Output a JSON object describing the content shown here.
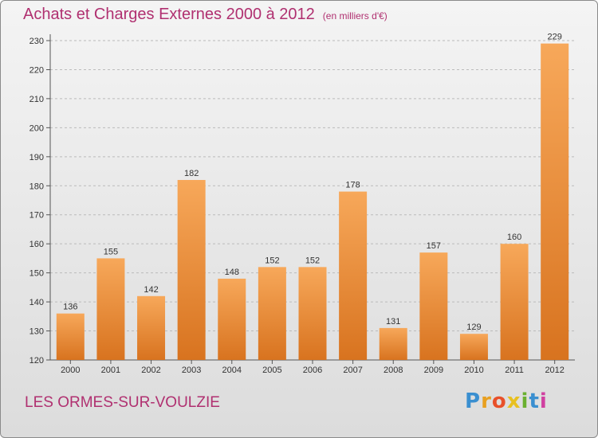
{
  "title": "Achats et Charges Externes 2000 à 2012",
  "subtitle": "(en milliers d'€)",
  "location": "LES ORMES-SUR-VOULZIE",
  "brand": {
    "letters": [
      "P",
      "r",
      "o",
      "x",
      "i",
      "t",
      "i"
    ],
    "colors": [
      "#3a8fd0",
      "#e8a020",
      "#e8502a",
      "#e8c020",
      "#6ab030",
      "#3a8fd0",
      "#d040a0"
    ]
  },
  "colors": {
    "title": "#b03070",
    "bar_light": "#f7a85a",
    "bar_dark": "#d8731f",
    "grid": "#bbbbbb"
  },
  "chart_data": {
    "type": "bar",
    "categories": [
      "2000",
      "2001",
      "2002",
      "2003",
      "2004",
      "2005",
      "2006",
      "2007",
      "2008",
      "2009",
      "2010",
      "2011",
      "2012"
    ],
    "values": [
      136,
      155,
      142,
      182,
      148,
      152,
      152,
      178,
      131,
      157,
      129,
      160,
      229
    ],
    "ylim": [
      120,
      230
    ],
    "yticks": [
      120,
      130,
      140,
      150,
      160,
      170,
      180,
      190,
      200,
      210,
      220,
      230
    ],
    "grid": true,
    "xlabel": "",
    "ylabel": ""
  }
}
